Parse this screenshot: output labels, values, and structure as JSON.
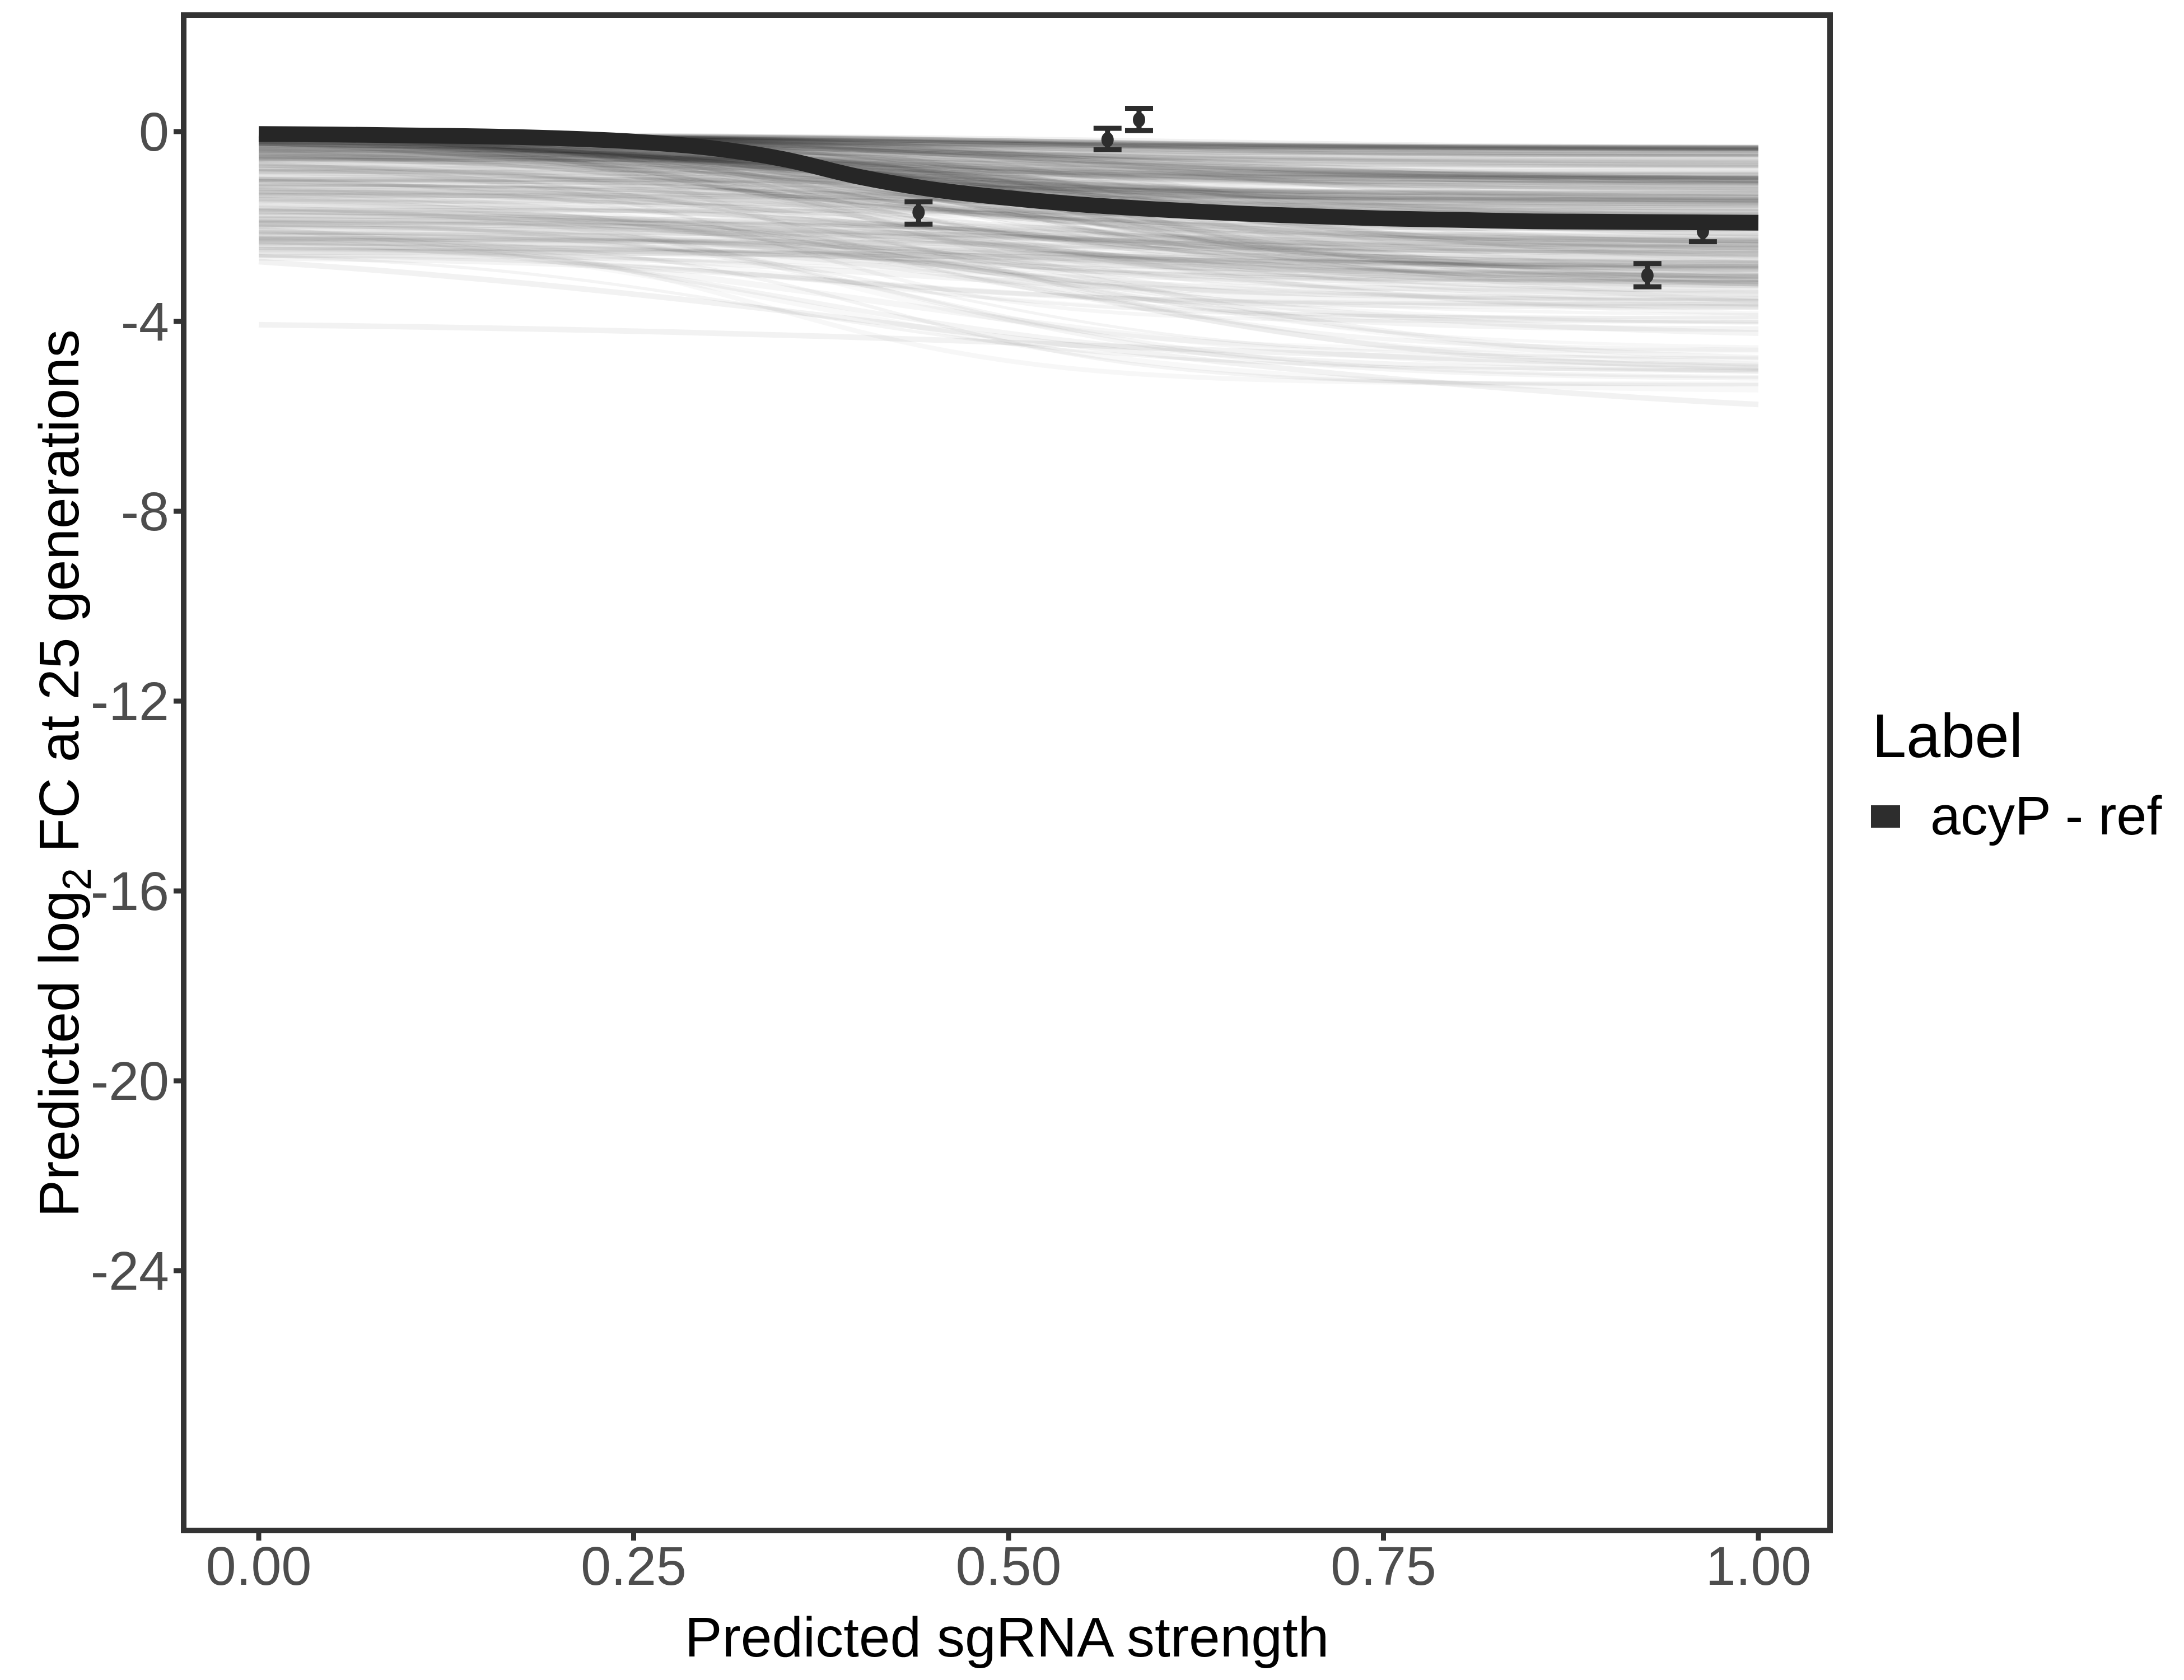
{
  "page": {
    "background": "#ffffff"
  },
  "chart_data": {
    "type": "line",
    "title": "",
    "xlabel": "Predicted sgRNA strength",
    "ylabel_pre": "Predicted  log",
    "ylabel_sub": "2",
    "ylabel_post": " FC at 25 generations",
    "x_axis": {
      "values": [
        0,
        0.25,
        0.5,
        0.75,
        1.0
      ],
      "labels": [
        "0.00",
        "0.25",
        "0.50",
        "0.75",
        "1.00"
      ]
    },
    "y_axis": {
      "values": [
        0,
        -4,
        -8,
        -12,
        -16,
        -20,
        -24
      ],
      "labels": [
        "0",
        "-4",
        "-8",
        "-12",
        "-16",
        "-20",
        "-24"
      ]
    },
    "xlim": [
      -0.05,
      1.05
    ],
    "ylim": [
      -29.45,
      2.45
    ],
    "grid": false,
    "legend": {
      "title": "Label",
      "position": "right",
      "entries": [
        {
          "label": "acyP - ref",
          "color": "#2d2d2d"
        }
      ]
    },
    "series": [
      {
        "name": "acyP - ref",
        "color": "#262626",
        "width": 28,
        "x": [
          0.0,
          0.05,
          0.1,
          0.15,
          0.2,
          0.25,
          0.3,
          0.35,
          0.4,
          0.45,
          0.5,
          0.55,
          0.6,
          0.65,
          0.7,
          0.75,
          0.8,
          0.85,
          0.9,
          0.95,
          1.0
        ],
        "y": [
          -0.05,
          -0.06,
          -0.08,
          -0.1,
          -0.14,
          -0.21,
          -0.34,
          -0.58,
          -0.95,
          -1.22,
          -1.4,
          -1.54,
          -1.64,
          -1.72,
          -1.78,
          -1.83,
          -1.86,
          -1.89,
          -1.9,
          -1.91,
          -1.92
        ]
      }
    ],
    "points": [
      {
        "x": 0.44,
        "y": -1.7,
        "ymin": -1.95,
        "ymax": -1.48
      },
      {
        "x": 0.566,
        "y": -0.17,
        "ymin": -0.38,
        "ymax": 0.07
      },
      {
        "x": 0.587,
        "y": 0.25,
        "ymin": 0.02,
        "ymax": 0.49
      },
      {
        "x": 0.926,
        "y": -3.03,
        "ymin": -3.27,
        "ymax": -2.78
      },
      {
        "x": 0.963,
        "y": -2.1,
        "ymin": -2.32,
        "ymax": -1.88
      }
    ],
    "ensemble": {
      "description": "posterior draw curves",
      "count": 320,
      "seed": 11,
      "color": "#000000",
      "y_start_range": [
        -0.07,
        -2.67
      ],
      "y_end_min": -5.75,
      "midpoint_range": [
        0.32,
        0.62
      ],
      "scale_range": [
        0.075,
        0.185
      ],
      "opacity_base": 0.025,
      "opacity_span": 0.04,
      "width_range": [
        5,
        11
      ],
      "strays": [
        {
          "y0": -1.9,
          "y1": -2.6,
          "x0": 0.55,
          "s": 0.18,
          "a": 0.05,
          "w": 9
        },
        {
          "y0": -2.18,
          "y1": -2.9,
          "x0": 0.5,
          "s": 0.2,
          "a": 0.045,
          "w": 9
        },
        {
          "y0": -2.38,
          "y1": -3.2,
          "x0": 0.45,
          "s": 0.25,
          "a": 0.04,
          "w": 9
        },
        {
          "y0": -2.74,
          "y1": -5.75,
          "x0": 0.45,
          "s": 0.28,
          "a": 0.05,
          "w": 10
        },
        {
          "y0": -4.07,
          "y1": -4.95,
          "x0": 0.6,
          "s": 0.25,
          "a": 0.05,
          "w": 10
        },
        {
          "y0": -1.6,
          "y1": -5.2,
          "x0": 0.42,
          "s": 0.12,
          "a": 0.04,
          "w": 8
        },
        {
          "y0": -1.3,
          "y1": -4.6,
          "x0": 0.5,
          "s": 0.1,
          "a": 0.04,
          "w": 8
        }
      ]
    },
    "styles": {
      "panel_border": "#333333",
      "tick_color": "#333333",
      "tick_label_color": "#4d4d4d",
      "axis_title_color": "#000000",
      "errorbar_color": "#2d2d2d",
      "legend_text_color": "#000000"
    }
  }
}
